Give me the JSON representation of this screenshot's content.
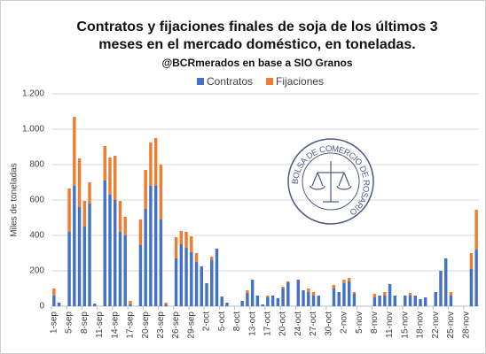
{
  "chart_data": {
    "type": "stacked_bar",
    "title": [
      "Contratos y fijaciones finales de soja de los últimos 3",
      "meses en el mercado doméstico, en toneladas."
    ],
    "subtitle": "@BCRmerados en base a SIO Granos",
    "y_label": "Miles de toneladas",
    "watermark": "BOLSA DE COMERCIO DE ROSARIO",
    "categories": [
      "1-sep",
      null,
      null,
      "5-sep",
      null,
      null,
      "8-sep",
      null,
      null,
      "11-sep",
      null,
      null,
      "14-sep",
      null,
      null,
      "17-sep",
      null,
      null,
      "20-sep",
      null,
      null,
      "23-sep",
      null,
      null,
      "26-sep",
      null,
      null,
      "29-sep",
      null,
      null,
      "2-oct",
      null,
      null,
      "5-oct",
      null,
      null,
      "8-oct",
      null,
      null,
      "13-oct",
      null,
      null,
      "17-oct",
      null,
      null,
      "20-oct",
      null,
      null,
      "24-oct",
      null,
      null,
      "27-oct",
      null,
      null,
      "30-oct",
      null,
      null,
      "2-nov",
      null,
      null,
      "5-nov",
      null,
      null,
      "8-nov",
      null,
      null,
      "11-nov",
      null,
      null,
      "15-nov",
      null,
      null,
      "18-nov",
      null,
      null,
      "22-nov",
      null,
      null,
      "25-nov",
      null,
      null,
      "28-nov",
      null,
      null
    ],
    "series": [
      {
        "name": "Contratos",
        "color": "#4472c4",
        "values": [
          60,
          20,
          0,
          420,
          680,
          560,
          450,
          580,
          15,
          0,
          710,
          630,
          600,
          420,
          400,
          10,
          0,
          345,
          550,
          680,
          680,
          490,
          10,
          0,
          270,
          350,
          330,
          305,
          250,
          225,
          130,
          260,
          325,
          55,
          20,
          0,
          0,
          30,
          75,
          150,
          60,
          10,
          50,
          60,
          45,
          100,
          135,
          0,
          150,
          90,
          80,
          60,
          60,
          0,
          0,
          100,
          80,
          130,
          140,
          70,
          0,
          0,
          0,
          50,
          60,
          60,
          125,
          60,
          0,
          60,
          60,
          60,
          40,
          50,
          0,
          80,
          200,
          270,
          60,
          0,
          0,
          0,
          210,
          320
        ]
      },
      {
        "name": "Fijaciones",
        "color": "#ed7d31",
        "values": [
          40,
          0,
          0,
          245,
          390,
          275,
          145,
          120,
          0,
          0,
          195,
          210,
          250,
          175,
          105,
          20,
          0,
          145,
          220,
          245,
          270,
          310,
          10,
          0,
          120,
          75,
          90,
          90,
          50,
          0,
          0,
          20,
          0,
          0,
          0,
          0,
          0,
          0,
          15,
          0,
          0,
          0,
          10,
          0,
          0,
          10,
          5,
          0,
          0,
          0,
          20,
          20,
          0,
          0,
          0,
          20,
          0,
          20,
          20,
          10,
          0,
          0,
          0,
          20,
          0,
          20,
          0,
          0,
          0,
          0,
          15,
          0,
          0,
          0,
          0,
          0,
          0,
          0,
          20,
          0,
          0,
          0,
          90,
          225
        ]
      }
    ],
    "ylim": [
      0,
      1200
    ],
    "yticks": [
      0,
      200,
      400,
      600,
      800,
      {
        "value": 1000,
        "label": "1.000"
      },
      {
        "value": 1200,
        "label": "1.200"
      }
    ],
    "grid": true,
    "legend": "top"
  }
}
